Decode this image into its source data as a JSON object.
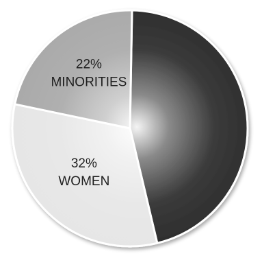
{
  "chart_data": {
    "type": "pie",
    "slices": [
      {
        "value": 46,
        "label": "",
        "text": "",
        "color": "#2a2a2a"
      },
      {
        "value": 32,
        "label": "32%",
        "text": "WOMEN",
        "color": "#e6e6e6"
      },
      {
        "value": 22,
        "label": "22%",
        "text": "MINORITIES",
        "color": "#a9a9a9"
      }
    ],
    "title": "",
    "legend": "none"
  }
}
